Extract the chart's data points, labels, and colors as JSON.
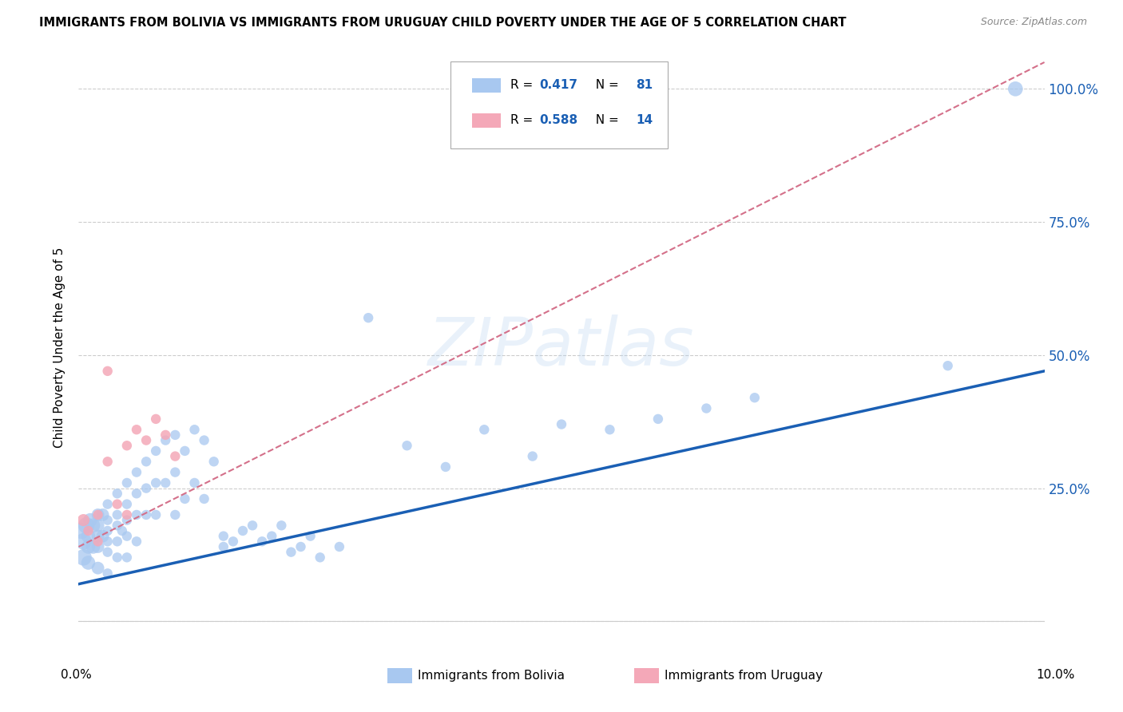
{
  "title": "IMMIGRANTS FROM BOLIVIA VS IMMIGRANTS FROM URUGUAY CHILD POVERTY UNDER THE AGE OF 5 CORRELATION CHART",
  "source": "Source: ZipAtlas.com",
  "ylabel": "Child Poverty Under the Age of 5",
  "watermark": "ZIPatlas",
  "bolivia_R": 0.417,
  "bolivia_N": 81,
  "uruguay_R": 0.588,
  "uruguay_N": 14,
  "bolivia_color": "#a8c8f0",
  "uruguay_color": "#f4a8b8",
  "trendline_bolivia_color": "#1a5fb4",
  "trendline_uruguay_color": "#d4708a",
  "xlim": [
    0.0,
    0.1
  ],
  "ylim": [
    -0.05,
    1.08
  ],
  "ytick_values": [
    0.0,
    0.25,
    0.5,
    0.75,
    1.0
  ],
  "ytick_labels": [
    "",
    "25.0%",
    "50.0%",
    "75.0%",
    "100.0%"
  ],
  "xtick_label_left": "0.0%",
  "xtick_label_right": "10.0%",
  "legend_label_bolivia": "Immigrants from Bolivia",
  "legend_label_uruguay": "Immigrants from Uruguay",
  "bolivia_x": [
    0.0003,
    0.0005,
    0.0005,
    0.0008,
    0.001,
    0.001,
    0.001,
    0.0012,
    0.0015,
    0.0015,
    0.002,
    0.002,
    0.002,
    0.002,
    0.002,
    0.0025,
    0.0025,
    0.003,
    0.003,
    0.003,
    0.003,
    0.003,
    0.003,
    0.004,
    0.004,
    0.004,
    0.004,
    0.004,
    0.0045,
    0.005,
    0.005,
    0.005,
    0.005,
    0.005,
    0.006,
    0.006,
    0.006,
    0.006,
    0.007,
    0.007,
    0.007,
    0.008,
    0.008,
    0.008,
    0.009,
    0.009,
    0.01,
    0.01,
    0.01,
    0.011,
    0.011,
    0.012,
    0.012,
    0.013,
    0.013,
    0.014,
    0.015,
    0.015,
    0.016,
    0.017,
    0.018,
    0.019,
    0.02,
    0.021,
    0.022,
    0.023,
    0.024,
    0.025,
    0.027,
    0.03,
    0.034,
    0.038,
    0.042,
    0.047,
    0.05,
    0.055,
    0.06,
    0.065,
    0.07,
    0.09,
    0.097
  ],
  "bolivia_y": [
    0.17,
    0.15,
    0.12,
    0.18,
    0.16,
    0.14,
    0.11,
    0.19,
    0.18,
    0.14,
    0.2,
    0.18,
    0.16,
    0.14,
    0.1,
    0.2,
    0.16,
    0.22,
    0.19,
    0.17,
    0.15,
    0.13,
    0.09,
    0.24,
    0.2,
    0.18,
    0.15,
    0.12,
    0.17,
    0.26,
    0.22,
    0.19,
    0.16,
    0.12,
    0.28,
    0.24,
    0.2,
    0.15,
    0.3,
    0.25,
    0.2,
    0.32,
    0.26,
    0.2,
    0.34,
    0.26,
    0.35,
    0.28,
    0.2,
    0.32,
    0.23,
    0.36,
    0.26,
    0.34,
    0.23,
    0.3,
    0.16,
    0.14,
    0.15,
    0.17,
    0.18,
    0.15,
    0.16,
    0.18,
    0.13,
    0.14,
    0.16,
    0.12,
    0.14,
    0.57,
    0.33,
    0.29,
    0.36,
    0.31,
    0.37,
    0.36,
    0.38,
    0.4,
    0.42,
    0.48,
    1.0
  ],
  "uruguay_x": [
    0.0005,
    0.001,
    0.002,
    0.002,
    0.003,
    0.003,
    0.004,
    0.005,
    0.005,
    0.006,
    0.007,
    0.008,
    0.009,
    0.01
  ],
  "uruguay_y": [
    0.19,
    0.17,
    0.2,
    0.15,
    0.47,
    0.3,
    0.22,
    0.33,
    0.2,
    0.36,
    0.34,
    0.38,
    0.35,
    0.31
  ],
  "bolivia_trendline_x0": 0.0,
  "bolivia_trendline_y0": 0.07,
  "bolivia_trendline_x1": 0.1,
  "bolivia_trendline_y1": 0.47,
  "uruguay_trendline_x0": 0.0,
  "uruguay_trendline_y0": 0.14,
  "uruguay_trendline_x1": 0.1,
  "uruguay_trendline_y1": 1.05
}
